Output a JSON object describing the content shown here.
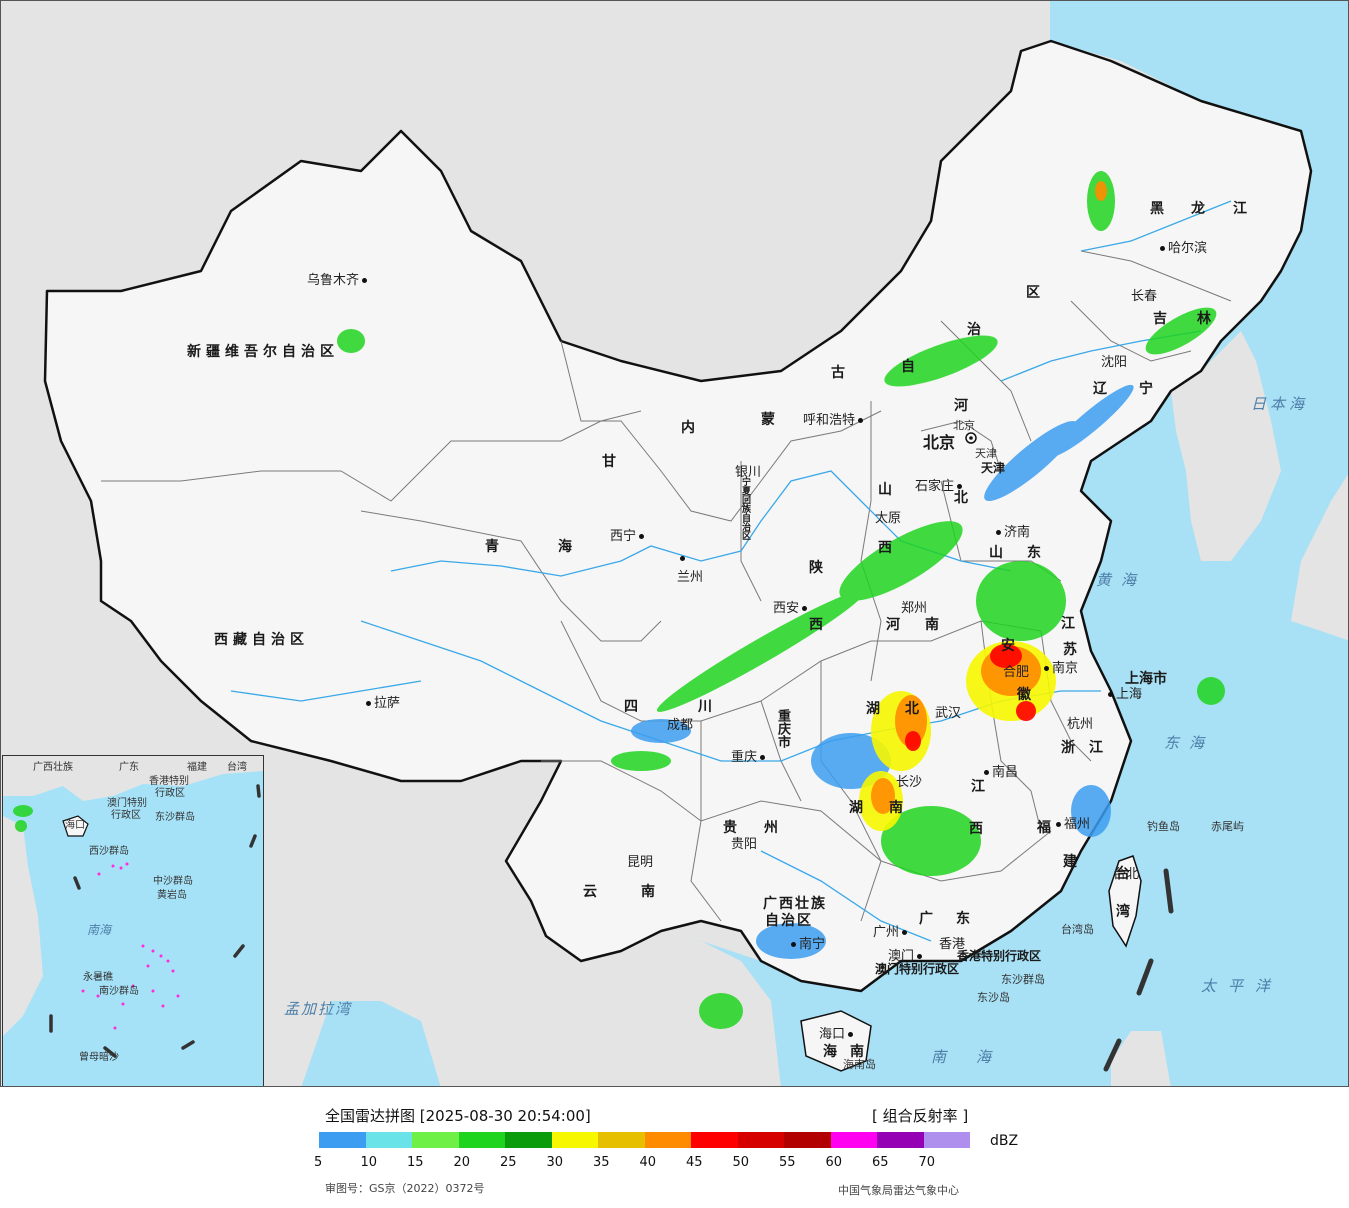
{
  "map": {
    "provinces": [
      {
        "name": "新疆维吾尔自治区"
      },
      {
        "name": "西藏自治区"
      },
      {
        "name": "青"
      },
      {
        "name": "海"
      },
      {
        "name": "甘"
      },
      {
        "name": "四"
      },
      {
        "name": "川"
      },
      {
        "name": "云"
      },
      {
        "name": "南"
      },
      {
        "name": "内"
      },
      {
        "name": "蒙"
      },
      {
        "name": "古"
      },
      {
        "name": "自"
      },
      {
        "name": "治"
      },
      {
        "name": "区"
      },
      {
        "name": "黑"
      },
      {
        "name": "龙"
      },
      {
        "name": "江"
      },
      {
        "name": "吉"
      },
      {
        "name": "林"
      },
      {
        "name": "辽"
      },
      {
        "name": "宁"
      },
      {
        "name": "河"
      },
      {
        "name": "北"
      },
      {
        "name": "山"
      },
      {
        "name": "西"
      },
      {
        "name": "山"
      },
      {
        "name": "东"
      },
      {
        "name": "河"
      },
      {
        "name": "南"
      },
      {
        "name": "陕"
      },
      {
        "name": "西"
      },
      {
        "name": "江"
      },
      {
        "name": "苏"
      },
      {
        "name": "安"
      },
      {
        "name": "徽"
      },
      {
        "name": "浙"
      },
      {
        "name": "江"
      },
      {
        "name": "湖"
      },
      {
        "name": "北"
      },
      {
        "name": "湖"
      },
      {
        "name": "南"
      },
      {
        "name": "江"
      },
      {
        "name": "西"
      },
      {
        "name": "福"
      },
      {
        "name": "建"
      },
      {
        "name": "贵"
      },
      {
        "name": "州"
      },
      {
        "name": "广西壮族"
      },
      {
        "name": "自治区"
      },
      {
        "name": "广"
      },
      {
        "name": "东"
      },
      {
        "name": "海"
      },
      {
        "name": "南"
      },
      {
        "name": "重庆市"
      },
      {
        "name": "上海市"
      },
      {
        "name": "台"
      },
      {
        "name": "湾"
      },
      {
        "name": "宁夏回族自治区"
      },
      {
        "name": "北京"
      },
      {
        "name": "天津"
      },
      {
        "name": "香港特别行政区"
      },
      {
        "name": "澳门特别行政区"
      }
    ],
    "cities": [
      {
        "name": "乌鲁木齐"
      },
      {
        "name": "拉萨"
      },
      {
        "name": "西宁"
      },
      {
        "name": "兰州"
      },
      {
        "name": "银川"
      },
      {
        "name": "呼和浩特"
      },
      {
        "name": "北京"
      },
      {
        "name": "天津"
      },
      {
        "name": "石家庄"
      },
      {
        "name": "太原"
      },
      {
        "name": "济南"
      },
      {
        "name": "郑州"
      },
      {
        "name": "西安"
      },
      {
        "name": "成都"
      },
      {
        "name": "重庆"
      },
      {
        "name": "贵阳"
      },
      {
        "name": "昆明"
      },
      {
        "name": "南宁"
      },
      {
        "name": "广州"
      },
      {
        "name": "澳门"
      },
      {
        "name": "香港"
      },
      {
        "name": "海口"
      },
      {
        "name": "长沙"
      },
      {
        "name": "武汉"
      },
      {
        "name": "合肥"
      },
      {
        "name": "南京"
      },
      {
        "name": "上海"
      },
      {
        "name": "杭州"
      },
      {
        "name": "南昌"
      },
      {
        "name": "福州"
      },
      {
        "name": "台北"
      },
      {
        "name": "沈阳"
      },
      {
        "name": "长春"
      },
      {
        "name": "哈尔滨"
      }
    ],
    "seas": [
      {
        "name": "日本海"
      },
      {
        "name": "黄海"
      },
      {
        "name": "东海"
      },
      {
        "name": "太平洋"
      },
      {
        "name": "南海"
      },
      {
        "name": "孟加拉湾"
      }
    ],
    "islands": [
      {
        "name": "钓鱼岛"
      },
      {
        "name": "赤尾屿"
      },
      {
        "name": "台湾岛"
      },
      {
        "name": "东沙群岛"
      },
      {
        "name": "东沙岛"
      },
      {
        "name": "海南岛"
      }
    ]
  },
  "inset": {
    "labels": [
      "广西壮族",
      "广东",
      "福建",
      "台湾",
      "香港特别",
      "行政区",
      "澳门特别",
      "行政区",
      "东沙群岛",
      "海口",
      "西沙群岛",
      "南海",
      "中沙群岛",
      "黄岩岛",
      "永暑礁",
      "南沙群岛",
      "曾母暗沙"
    ]
  },
  "legend": {
    "title": "全国雷达拼图 [2025-08-30 20:54:00]",
    "product": "[ 组合反射率 ]",
    "unit": "dBZ",
    "colors": [
      "#3d9df0",
      "#69e3e8",
      "#6ef047",
      "#1fd41f",
      "#0b9c0b",
      "#f7f700",
      "#e6c000",
      "#ff8c00",
      "#ff0000",
      "#d60000",
      "#b20000",
      "#ff00f0",
      "#9600b4",
      "#af8fee"
    ],
    "ticks": [
      "5",
      "10",
      "15",
      "20",
      "25",
      "30",
      "35",
      "40",
      "45",
      "50",
      "55",
      "60",
      "65",
      "70"
    ],
    "approval": "审图号：GS京（2022）0372号",
    "agency": "中国气象局雷达气象中心"
  }
}
